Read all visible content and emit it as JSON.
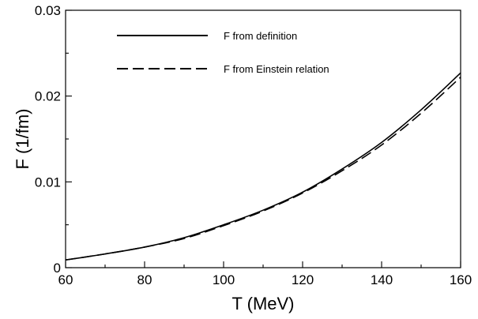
{
  "chart_data": {
    "type": "line",
    "xlabel": "T (MeV)",
    "ylabel": "F (1/fm)",
    "xlim": [
      60,
      160
    ],
    "ylim": [
      0,
      0.03
    ],
    "x_ticks": [
      60,
      80,
      100,
      120,
      140,
      160
    ],
    "x_tick_labels": [
      "60",
      "80",
      "100",
      "120",
      "140",
      "160"
    ],
    "y_ticks": [
      0,
      0.01,
      0.02,
      0.03
    ],
    "y_tick_labels": [
      "0",
      "0.01",
      "0.02",
      "0.03"
    ],
    "grid": false,
    "legend_position": "top-left",
    "series": [
      {
        "name": "F from definition",
        "style": "solid",
        "color": "#000000",
        "x": [
          60,
          70,
          80,
          90,
          100,
          110,
          120,
          130,
          140,
          150,
          160
        ],
        "y": [
          0.0009,
          0.0016,
          0.0024,
          0.0035,
          0.005,
          0.0067,
          0.0088,
          0.0115,
          0.0146,
          0.0184,
          0.0227
        ]
      },
      {
        "name": "F from Einstein relation",
        "style": "dashed",
        "color": "#000000",
        "x": [
          60,
          70,
          80,
          90,
          100,
          110,
          120,
          130,
          140,
          150,
          160
        ],
        "y": [
          0.0009,
          0.0016,
          0.0024,
          0.0034,
          0.0049,
          0.0066,
          0.0087,
          0.0113,
          0.0143,
          0.018,
          0.0222
        ]
      }
    ]
  }
}
